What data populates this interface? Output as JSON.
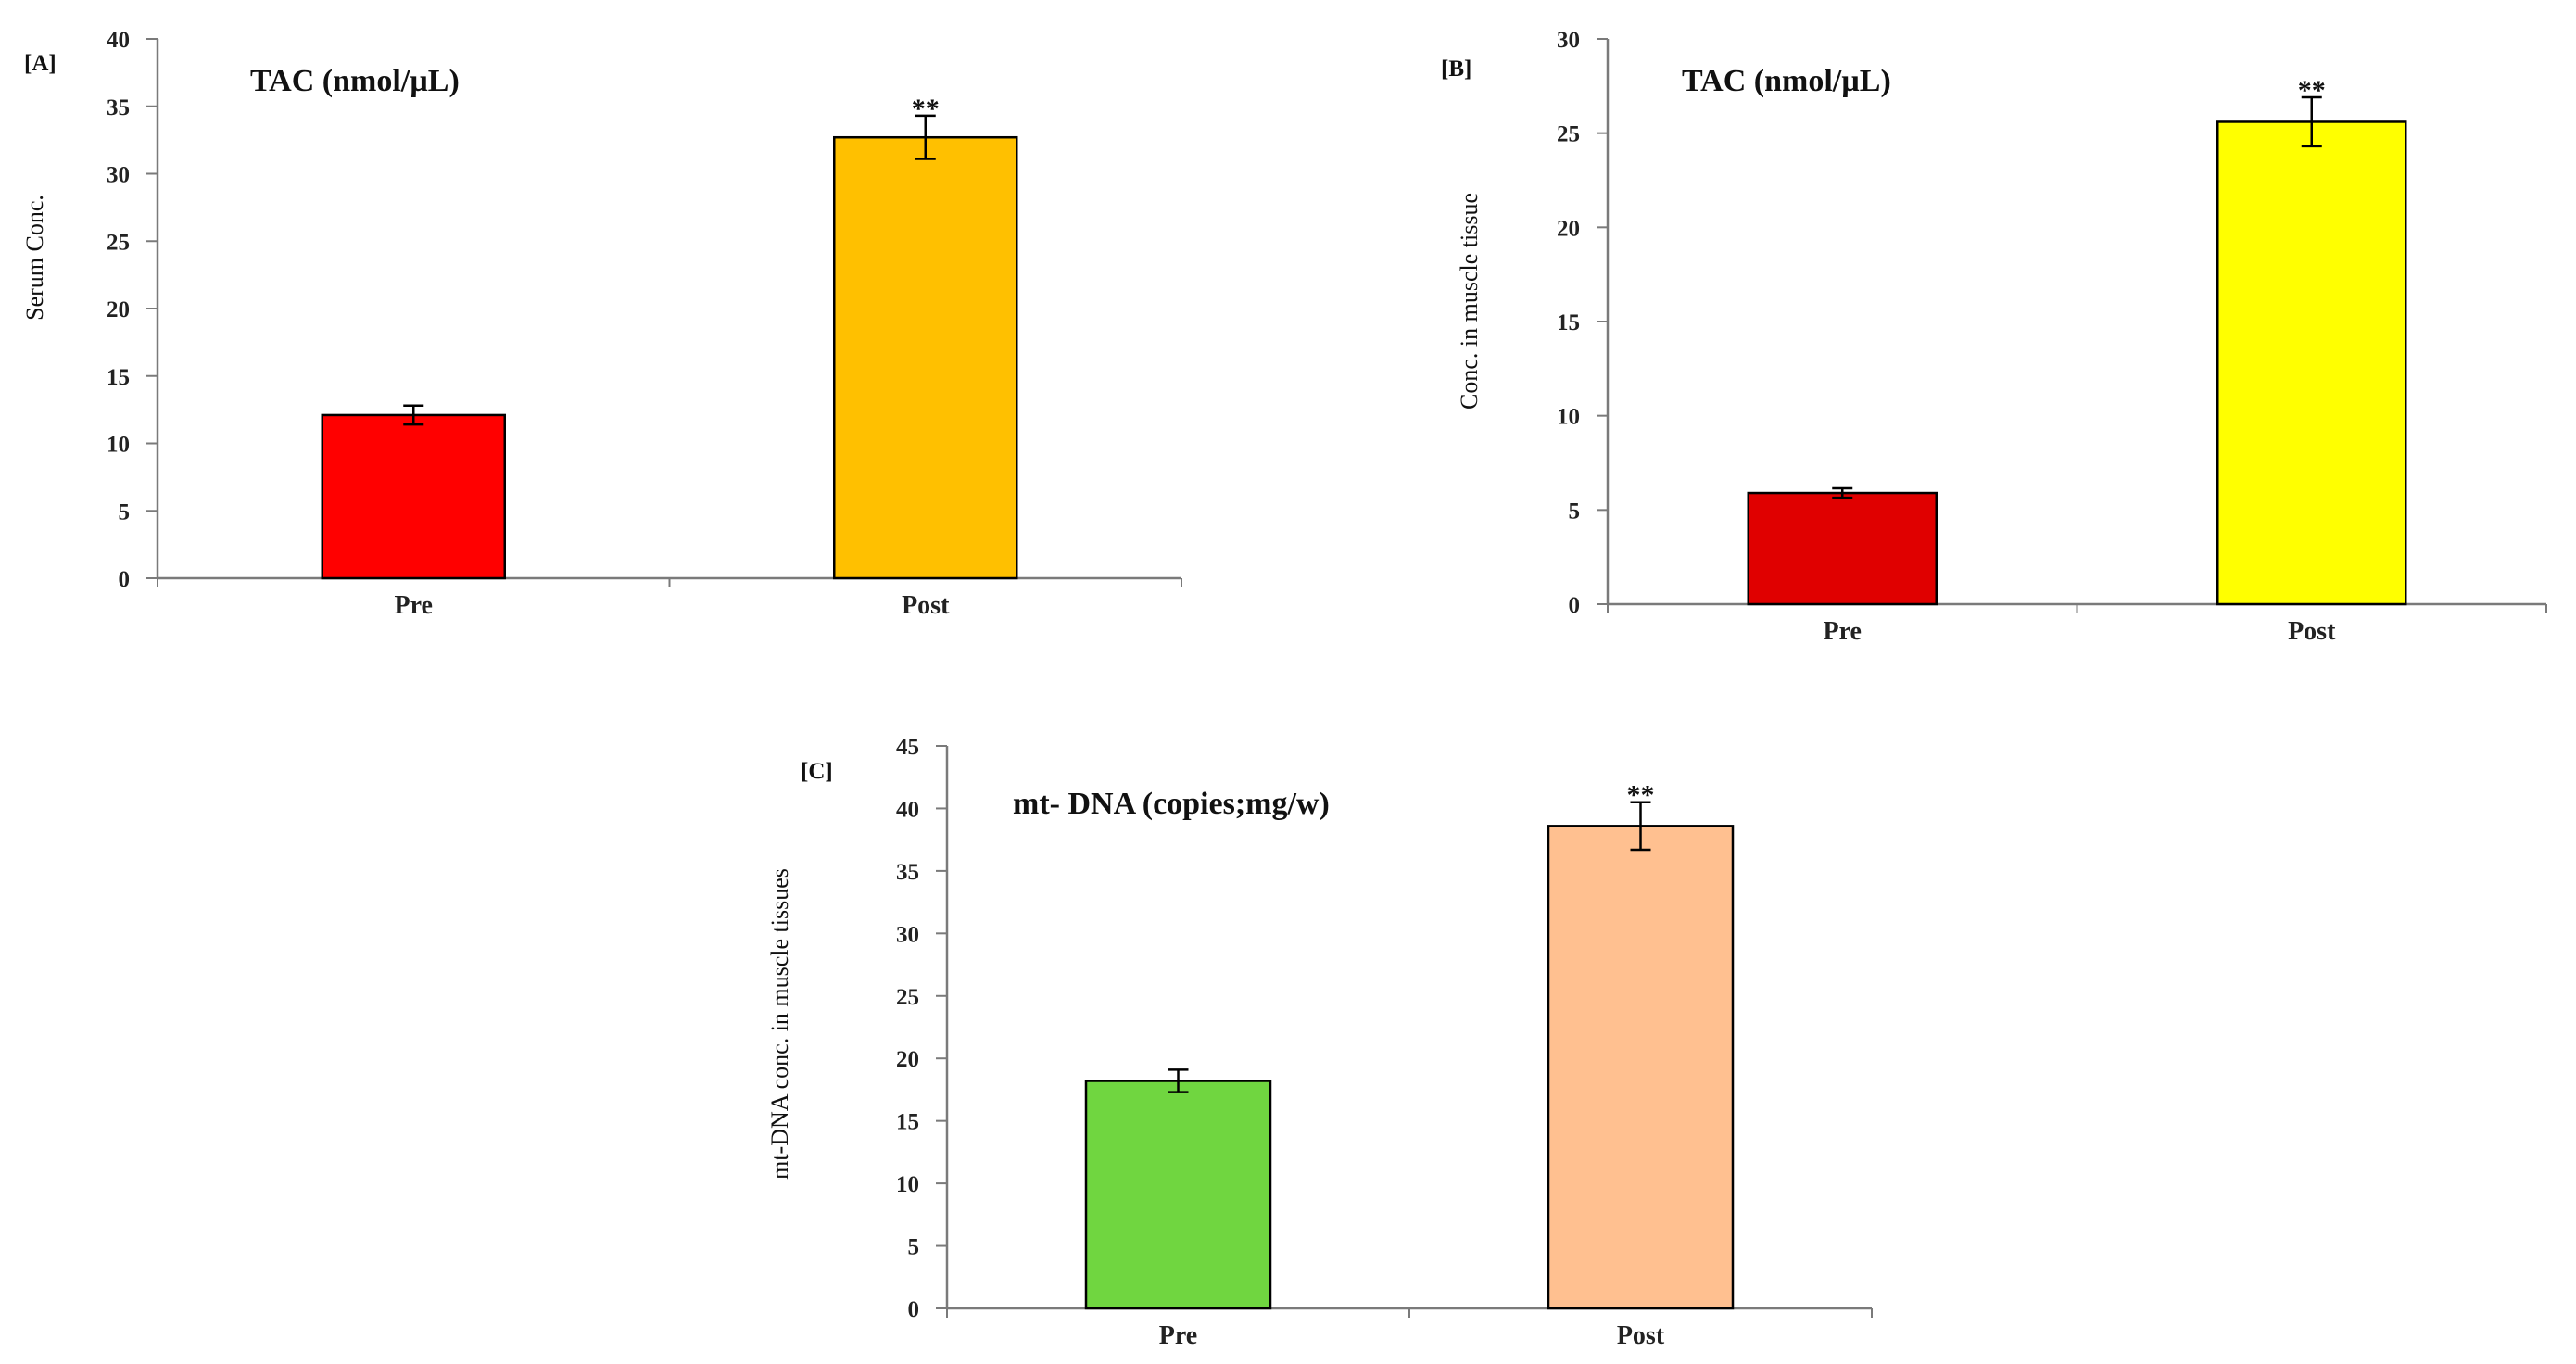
{
  "chart_data": [
    {
      "type": "bar",
      "tag": "[A]",
      "title": "TAC (nmol/µL)",
      "ylabel": "Serum Conc.",
      "xlabel": "",
      "ylim": [
        0,
        40
      ],
      "yticks": [
        0,
        5,
        10,
        15,
        20,
        25,
        30,
        35,
        40
      ],
      "categories": [
        "Pre",
        "Post"
      ],
      "values": [
        12.1,
        32.7
      ],
      "errors": [
        0.7,
        1.6
      ],
      "colors": [
        "#ff0000",
        "#ffc000"
      ],
      "significance": [
        "",
        "**"
      ]
    },
    {
      "type": "bar",
      "tag": "[B]",
      "title": "TAC (nmol/µL)",
      "ylabel": "Conc. in muscle tissue",
      "xlabel": "",
      "ylim": [
        0,
        30
      ],
      "yticks": [
        0,
        5,
        10,
        15,
        20,
        25,
        30
      ],
      "categories": [
        "Pre",
        "Post"
      ],
      "values": [
        5.9,
        25.6
      ],
      "errors": [
        0.25,
        1.3
      ],
      "colors": [
        "#e00000",
        "#ffff00"
      ],
      "significance": [
        "",
        "**"
      ]
    },
    {
      "type": "bar",
      "tag": "[C]",
      "title": "mt- DNA  (copies;mg/w)",
      "ylabel": "mt-DNA conc. in muscle tissues",
      "xlabel": "",
      "ylim": [
        0,
        45
      ],
      "yticks": [
        0,
        5,
        10,
        15,
        20,
        25,
        30,
        35,
        40,
        45
      ],
      "categories": [
        "Pre",
        "Post"
      ],
      "values": [
        18.2,
        38.6
      ],
      "errors": [
        0.9,
        1.9
      ],
      "colors": [
        "#70d640",
        "#ffc090"
      ],
      "significance": [
        "",
        "**"
      ]
    }
  ]
}
